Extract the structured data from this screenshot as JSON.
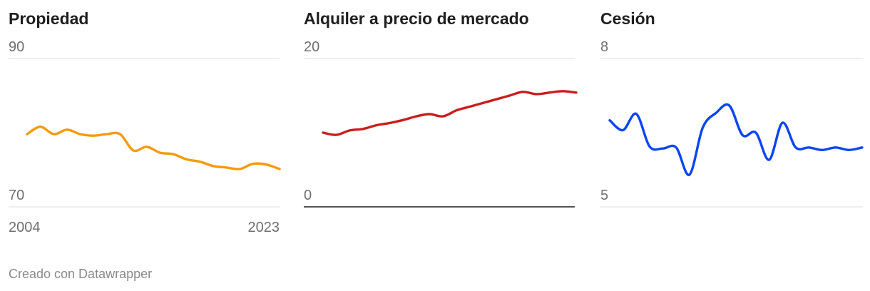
{
  "footer": "Creado con Datawrapper",
  "chart_data": [
    {
      "type": "line",
      "title": "Propiedad",
      "color": "#f59a0c",
      "ylim": [
        70,
        90
      ],
      "yticks": [
        "90",
        "70"
      ],
      "x": [
        2004,
        2005,
        2006,
        2007,
        2008,
        2009,
        2010,
        2011,
        2012,
        2013,
        2014,
        2015,
        2016,
        2017,
        2018,
        2019,
        2020,
        2021,
        2022,
        2023
      ],
      "xticks": [
        "2004",
        "2023"
      ],
      "values": [
        79.8,
        80.8,
        79.8,
        80.4,
        79.8,
        79.6,
        79.8,
        79.8,
        77.6,
        78.1,
        77.3,
        77.1,
        76.4,
        76.1,
        75.5,
        75.3,
        75.1,
        75.8,
        75.7,
        75.1
      ]
    },
    {
      "type": "line",
      "title": "Alquiler a precio de mercado",
      "color": "#c71e1d",
      "ylim": [
        0,
        20
      ],
      "yticks": [
        "20",
        "0"
      ],
      "x": [
        2004,
        2005,
        2006,
        2007,
        2008,
        2009,
        2010,
        2011,
        2012,
        2013,
        2014,
        2015,
        2016,
        2017,
        2018,
        2019,
        2020,
        2021,
        2022,
        2023
      ],
      "values": [
        10.0,
        9.7,
        10.3,
        10.5,
        11.0,
        11.3,
        11.7,
        12.2,
        12.5,
        12.2,
        13.0,
        13.5,
        14.0,
        14.5,
        15.0,
        15.5,
        15.2,
        15.4,
        15.6,
        15.4
      ]
    },
    {
      "type": "line",
      "title": "Cesión",
      "color": "#0a46f0",
      "ylim": [
        5,
        8
      ],
      "yticks": [
        "8",
        "5"
      ],
      "x": [
        2004,
        2005,
        2006,
        2007,
        2008,
        2009,
        2010,
        2011,
        2012,
        2013,
        2014,
        2015,
        2016,
        2017,
        2018,
        2019,
        2020,
        2021,
        2022,
        2023
      ],
      "values": [
        6.75,
        6.55,
        6.88,
        6.22,
        6.18,
        6.2,
        5.65,
        6.6,
        6.9,
        7.05,
        6.45,
        6.5,
        5.95,
        6.7,
        6.2,
        6.2,
        6.15,
        6.2,
        6.15,
        6.2
      ]
    }
  ]
}
